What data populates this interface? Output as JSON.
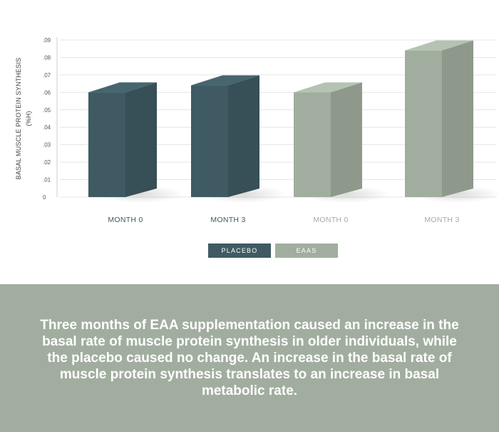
{
  "chart_data": {
    "type": "bar",
    "ylabel": "BASAL MUSCLE PROTEIN SYNTHESIS",
    "ylabel_unit": "(%H)",
    "ylim": [
      0,
      0.09
    ],
    "yticks": [
      0,
      0.01,
      0.02,
      0.03,
      0.04,
      0.05,
      0.06,
      0.07,
      0.08,
      0.09
    ],
    "ytick_labels": [
      "0",
      ".01",
      ".02",
      ".03",
      ".04",
      ".05",
      ".06",
      ".07",
      ".08",
      ".09"
    ],
    "grid": true,
    "categories": [
      "MONTH 0",
      "MONTH 3",
      "MONTH 0",
      "MONTH 3"
    ],
    "values": [
      0.06,
      0.064,
      0.06,
      0.084
    ],
    "groups": [
      "PLACEBO",
      "PLACEBO",
      "EAAS",
      "EAAS"
    ],
    "legend": [
      {
        "name": "PLACEBO",
        "color": "#3f5a62"
      },
      {
        "name": "EAAS",
        "color": "#a1ae9f"
      }
    ],
    "legend_position": "bottom-center"
  },
  "caption": "Three months of EAA supplementation caused an increase in the basal rate of muscle protein synthesis in older individuals, while the placebo caused no change. An increase in the basal rate of muscle protein synthesis translates to an increase in basal metabolic rate.",
  "colors": {
    "placebo": "#3f5a62",
    "eaas": "#a1ae9f",
    "caption_bg": "#a1ae9f"
  }
}
